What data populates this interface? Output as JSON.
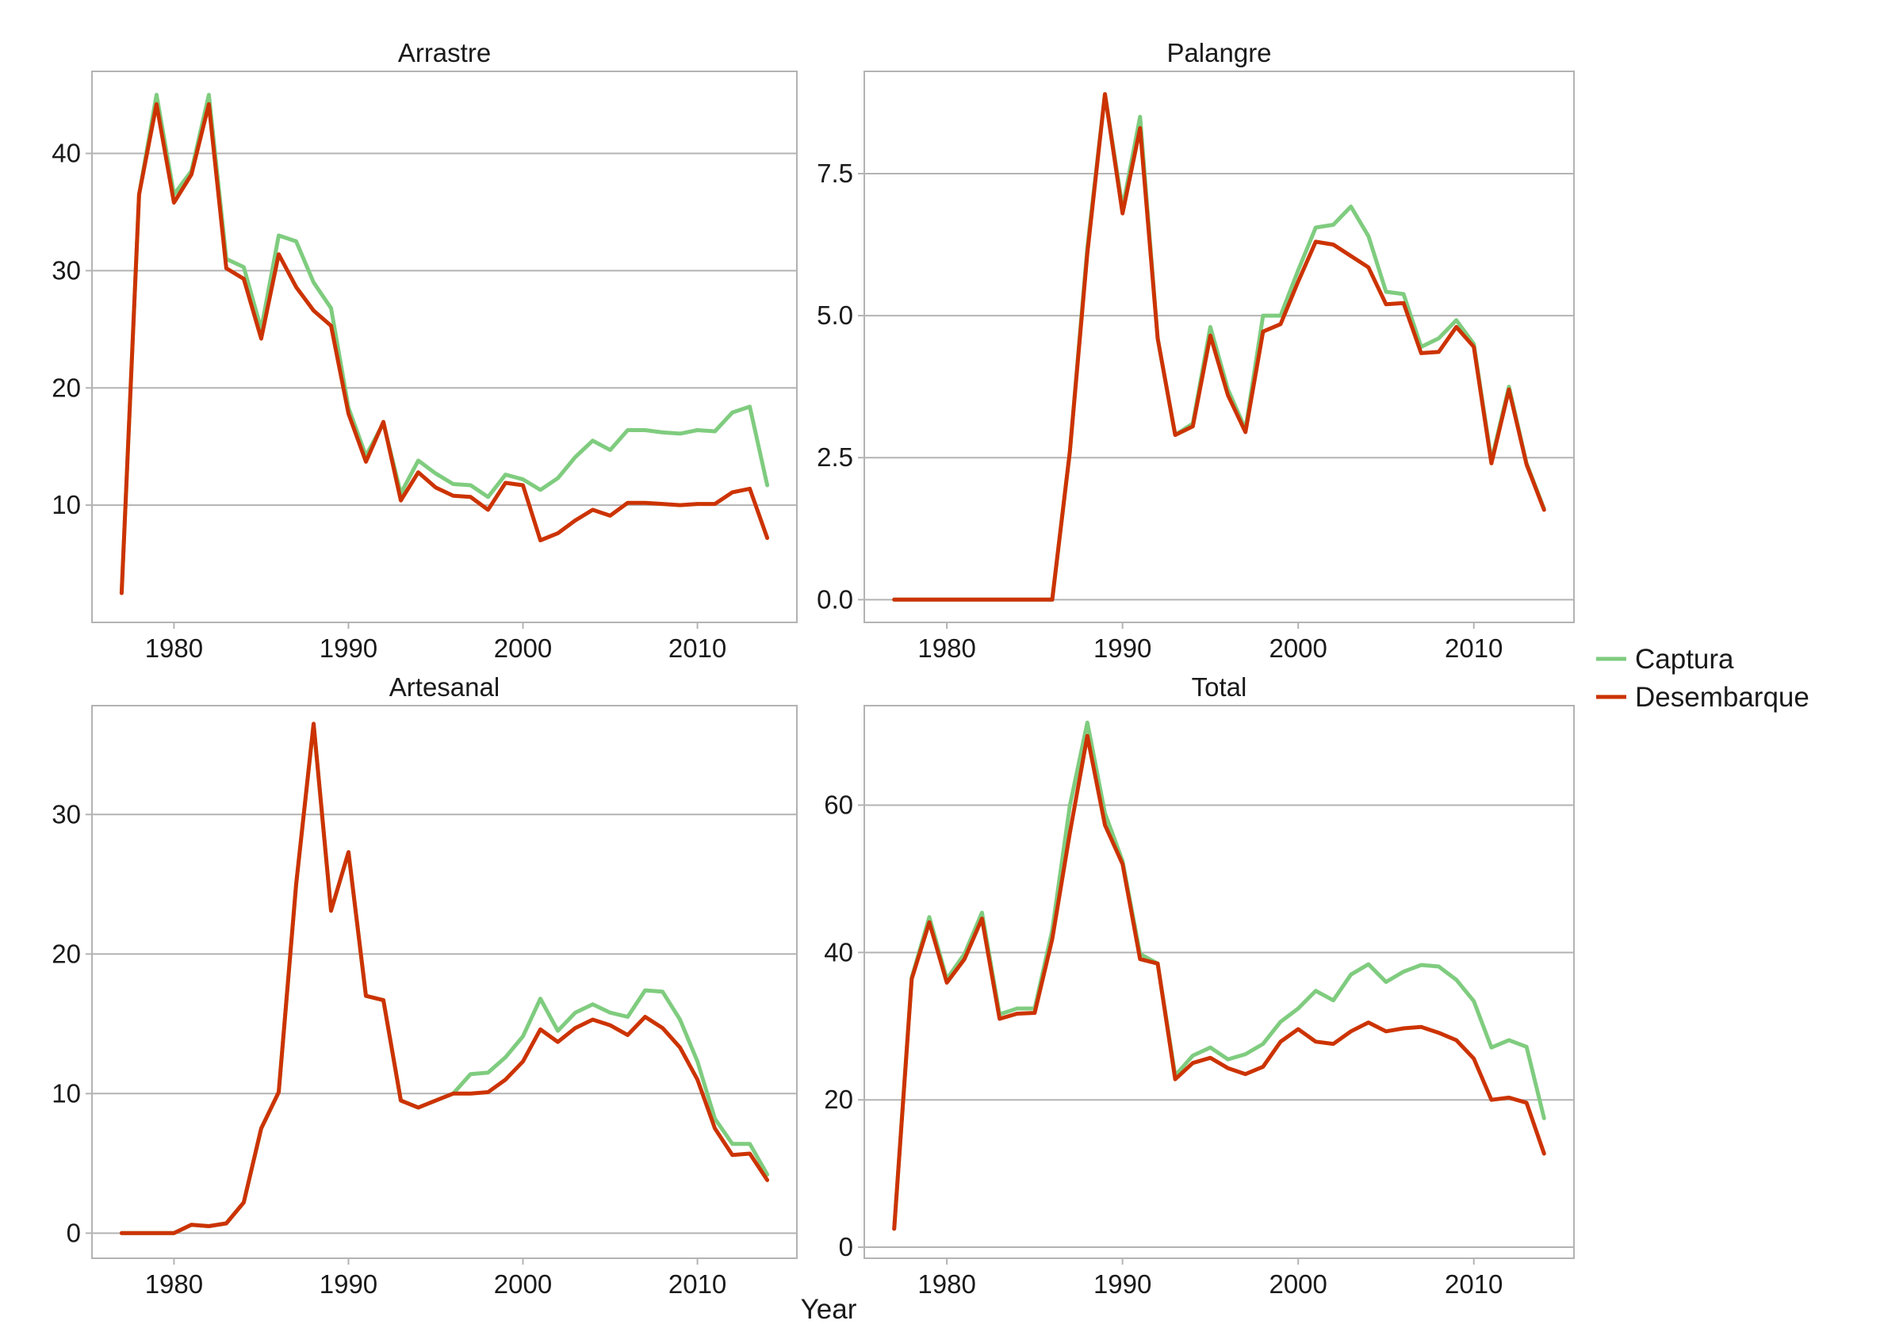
{
  "chart_data": {
    "type": "line",
    "xlabel": "Year",
    "x": [
      1977,
      1978,
      1979,
      1980,
      1981,
      1982,
      1983,
      1984,
      1985,
      1986,
      1987,
      1988,
      1989,
      1990,
      1991,
      1992,
      1993,
      1994,
      1995,
      1996,
      1997,
      1998,
      1999,
      2000,
      2001,
      2002,
      2003,
      2004,
      2005,
      2006,
      2007,
      2008,
      2009,
      2010,
      2011,
      2012,
      2013,
      2014
    ],
    "legend": {
      "placement": "right",
      "entries": [
        {
          "label": "Captura",
          "color": "#7fcc7f"
        },
        {
          "label": "Desembarque",
          "color": "#cc3300"
        }
      ]
    },
    "panels": [
      {
        "title": "Arrastre",
        "ylim": [
          0,
          47
        ],
        "yticks": [
          10,
          20,
          30,
          40
        ],
        "ytick_labels": [
          "10",
          "20",
          "30",
          "40"
        ],
        "xticks": [
          1980,
          1990,
          2000,
          2010
        ],
        "xtick_labels": [
          "1980",
          "1990",
          "2000",
          "2010"
        ],
        "series": [
          {
            "name": "Captura",
            "values": [
              2.5,
              36.5,
              45,
              36.5,
              38.5,
              45,
              31,
              30.3,
              25,
              33,
              32.5,
              29,
              26.8,
              18.3,
              14.2,
              17,
              11,
              13.8,
              12.7,
              11.8,
              11.7,
              10.7,
              12.6,
              12.2,
              11.3,
              12.3,
              14.1,
              15.5,
              14.7,
              16.4,
              16.4,
              16.2,
              16.1,
              16.4,
              16.3,
              17.9,
              18.4,
              11.7
            ]
          },
          {
            "name": "Desembarque",
            "values": [
              2.5,
              36.5,
              44.2,
              35.8,
              38.2,
              44.2,
              30.2,
              29.3,
              24.2,
              31.4,
              28.6,
              26.6,
              25.3,
              17.8,
              13.7,
              17.1,
              10.4,
              12.8,
              11.5,
              10.8,
              10.7,
              9.6,
              11.9,
              11.7,
              7,
              7.6,
              8.7,
              9.6,
              9.1,
              10.2,
              10.2,
              10.1,
              10,
              10.1,
              10.1,
              11.1,
              11.4,
              7.2
            ]
          }
        ]
      },
      {
        "title": "Palangre",
        "ylim": [
          -0.4,
          9.3
        ],
        "yticks": [
          0,
          2.5,
          5,
          7.5
        ],
        "ytick_labels": [
          "0.0",
          "2.5",
          "5.0",
          "7.5"
        ],
        "xticks": [
          1980,
          1990,
          2000,
          2010
        ],
        "xtick_labels": [
          "1980",
          "1990",
          "2000",
          "2010"
        ],
        "series": [
          {
            "name": "Captura",
            "values": [
              0,
              0,
              0,
              0,
              0,
              0,
              0,
              0,
              0,
              0,
              2.6,
              6.2,
              8.9,
              6.9,
              8.5,
              4.6,
              2.9,
              3.1,
              4.8,
              3.7,
              3,
              5,
              5,
              5.8,
              6.55,
              6.6,
              6.92,
              6.4,
              5.42,
              5.38,
              4.45,
              4.6,
              4.92,
              4.5,
              2.45,
              3.75,
              2.4,
              1.6
            ]
          },
          {
            "name": "Desembarque",
            "values": [
              0,
              0,
              0,
              0,
              0,
              0,
              0,
              0,
              0,
              0,
              2.6,
              6.1,
              8.9,
              6.8,
              8.3,
              4.6,
              2.9,
              3.05,
              4.65,
              3.6,
              2.95,
              4.72,
              4.85,
              5.6,
              6.3,
              6.25,
              6.05,
              5.85,
              5.2,
              5.22,
              4.34,
              4.36,
              4.8,
              4.45,
              2.4,
              3.7,
              2.38,
              1.58
            ]
          }
        ]
      },
      {
        "title": "Artesanal",
        "ylim": [
          -1.8,
          37.8
        ],
        "yticks": [
          0,
          10,
          20,
          30
        ],
        "ytick_labels": [
          "0",
          "10",
          "20",
          "30"
        ],
        "xticks": [
          1980,
          1990,
          2000,
          2010
        ],
        "xtick_labels": [
          "1980",
          "1990",
          "2000",
          "2010"
        ],
        "series": [
          {
            "name": "Captura",
            "values": [
              0,
              0,
              0,
              0,
              0.6,
              0.5,
              0.7,
              2.2,
              7.5,
              10.1,
              25,
              36.5,
              23.1,
              27.3,
              17,
              16.7,
              9.5,
              9,
              9.5,
              10,
              11.4,
              11.5,
              12.6,
              14.1,
              16.8,
              14.5,
              15.8,
              16.4,
              15.8,
              15.5,
              17.4,
              17.3,
              15.3,
              12.3,
              8.2,
              6.4,
              6.4,
              4.2
            ]
          },
          {
            "name": "Desembarque",
            "values": [
              0,
              0,
              0,
              0,
              0.6,
              0.5,
              0.7,
              2.2,
              7.5,
              10.1,
              25,
              36.5,
              23.1,
              27.3,
              17,
              16.7,
              9.5,
              9,
              9.5,
              10,
              10,
              10.1,
              11,
              12.3,
              14.6,
              13.7,
              14.7,
              15.3,
              14.9,
              14.2,
              15.5,
              14.7,
              13.3,
              11,
              7.5,
              5.6,
              5.7,
              3.8
            ]
          }
        ]
      },
      {
        "title": "Total",
        "ylim": [
          -1.5,
          73.5
        ],
        "yticks": [
          0,
          20,
          40,
          60
        ],
        "ytick_labels": [
          "0",
          "20",
          "40",
          "60"
        ],
        "xticks": [
          1980,
          1990,
          2000,
          2010
        ],
        "xtick_labels": [
          "1980",
          "1990",
          "2000",
          "2010"
        ],
        "series": [
          {
            "name": "Captura",
            "values": [
              2.5,
              36.6,
              44.8,
              36.4,
              39.8,
              45.4,
              31.6,
              32.4,
              32.4,
              43,
              59.9,
              71.2,
              58.9,
              52.4,
              39.8,
              38.5,
              23.3,
              26,
              27.1,
              25.5,
              26.2,
              27.6,
              30.6,
              32.4,
              34.8,
              33.5,
              37,
              38.4,
              36,
              37.4,
              38.3,
              38.1,
              36.3,
              33.4,
              27.1,
              28.1,
              27.2,
              17.5
            ]
          },
          {
            "name": "Desembarque",
            "values": [
              2.5,
              36.4,
              44.1,
              35.9,
              39.1,
              44.6,
              31,
              31.7,
              31.8,
              41.8,
              56.2,
              69.4,
              57.3,
              52,
              39.1,
              38.5,
              22.8,
              25,
              25.7,
              24.3,
              23.5,
              24.5,
              27.9,
              29.6,
              27.9,
              27.6,
              29.3,
              30.5,
              29.3,
              29.7,
              29.9,
              29.1,
              28.1,
              25.6,
              20,
              20.3,
              19.6,
              12.7
            ]
          }
        ]
      }
    ]
  }
}
